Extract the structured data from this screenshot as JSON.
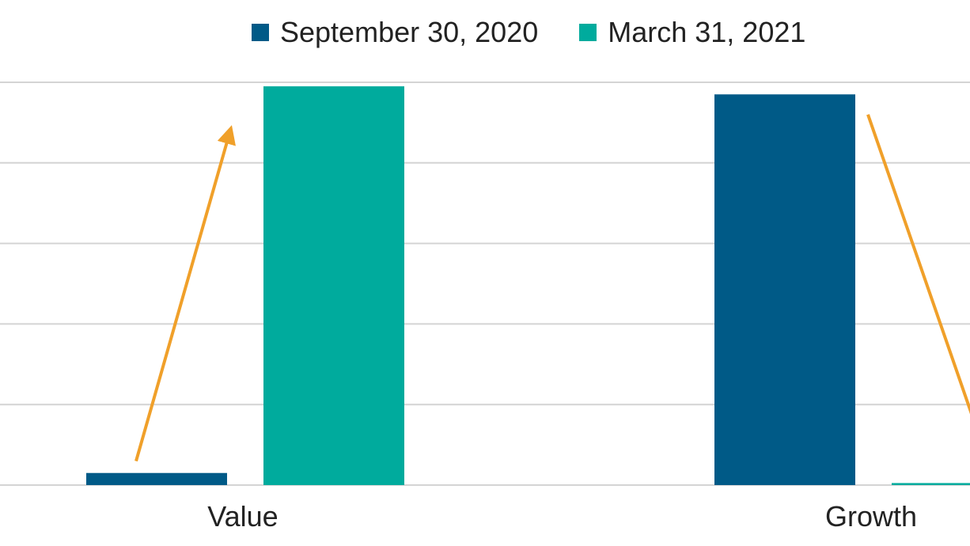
{
  "chart_data": {
    "type": "bar",
    "categories": [
      "Value",
      "Growth"
    ],
    "series": [
      {
        "name": "September 30, 2020",
        "values": [
          3,
          97
        ],
        "color": "#005a87"
      },
      {
        "name": "March 31, 2021",
        "values": [
          99,
          0.5
        ],
        "color": "#00ab9d"
      }
    ],
    "ylim": [
      0,
      100
    ],
    "grid": true,
    "legend": "top",
    "annotations": [
      {
        "type": "arrow",
        "direction": "up",
        "category": "Value",
        "color": "#f0a02a"
      },
      {
        "type": "arrow",
        "direction": "down",
        "category": "Growth",
        "color": "#f0a02a"
      }
    ]
  }
}
